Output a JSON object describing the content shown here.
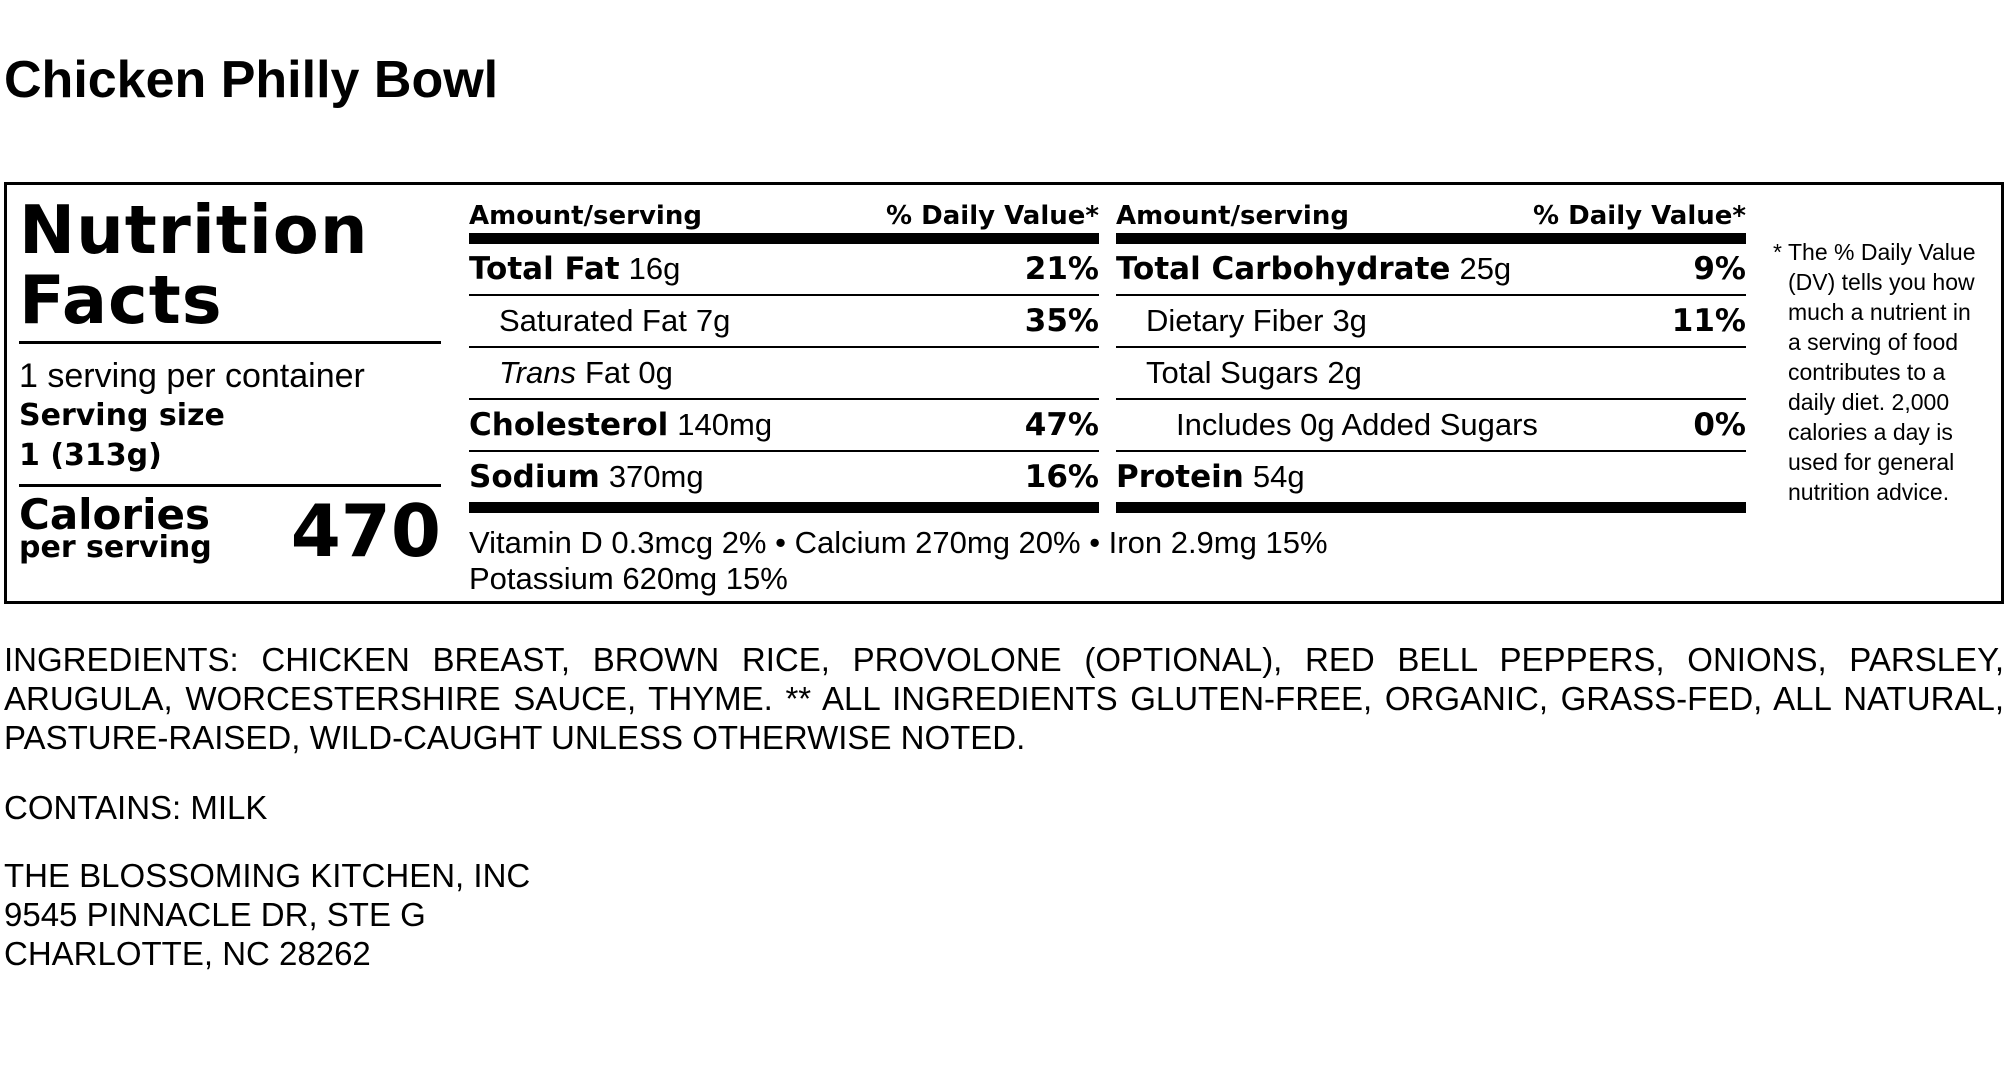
{
  "product_title": "Chicken Philly Bowl",
  "panel": {
    "heading_line1": "Nutrition",
    "heading_line2": "Facts",
    "servings_per_container": "1 serving per container",
    "serving_size_label": "Serving size",
    "serving_size_value": "1 (313g)",
    "calories_label": "Calories",
    "calories_sub": "per serving",
    "calories_value": "470",
    "column_header_amount": "Amount/serving",
    "column_header_dv": "% Daily Value*",
    "left_rows": [
      {
        "name": "Total Fat",
        "amount": "16g",
        "dv": "21%"
      },
      {
        "name": "Saturated Fat",
        "amount": "7g",
        "dv": "35%"
      },
      {
        "name": "Trans",
        "amount": "Fat 0g",
        "dv": ""
      },
      {
        "name": "Cholesterol",
        "amount": "140mg",
        "dv": "47%"
      },
      {
        "name": "Sodium",
        "amount": "370mg",
        "dv": "16%"
      }
    ],
    "right_rows": [
      {
        "name": "Total Carbohydrate",
        "amount": "25g",
        "dv": "9%"
      },
      {
        "name": "Dietary Fiber",
        "amount": "3g",
        "dv": "11%"
      },
      {
        "name": "Total Sugars",
        "amount": "2g",
        "dv": ""
      },
      {
        "name": "Includes 0g Added Sugars",
        "amount": "",
        "dv": "0%"
      },
      {
        "name": "Protein",
        "amount": "54g",
        "dv": ""
      }
    ],
    "vitamins_line1": "Vitamin D 0.3mcg 2% • Calcium 270mg 20% • Iron 2.9mg 15%",
    "vitamins_line2": "Potassium 620mg 15%",
    "footnote_star": "*",
    "footnote_text": "The % Daily Value (DV) tells you how much a nutrient in a serving of food contributes to a daily diet. 2,000 calories a day is used for general nutrition advice."
  },
  "ingredients": "INGREDIENTS: CHICKEN BREAST, BROWN RICE, PROVOLONE (OPTIONAL), RED BELL PEPPERS, ONIONS, PARSLEY, ARUGULA, WORCESTERSHIRE SAUCE, THYME. ** ALL INGREDIENTS GLUTEN-FREE, ORGANIC, GRASS-FED, ALL NATURAL, PASTURE-RAISED, WILD-CAUGHT UNLESS OTHERWISE NOTED.",
  "contains": "CONTAINS: MILK",
  "address": {
    "line1": "THE BLOSSOMING KITCHEN, INC",
    "line2": "9545 PINNACLE DR, STE G",
    "line3": "CHARLOTTE, NC 28262"
  }
}
